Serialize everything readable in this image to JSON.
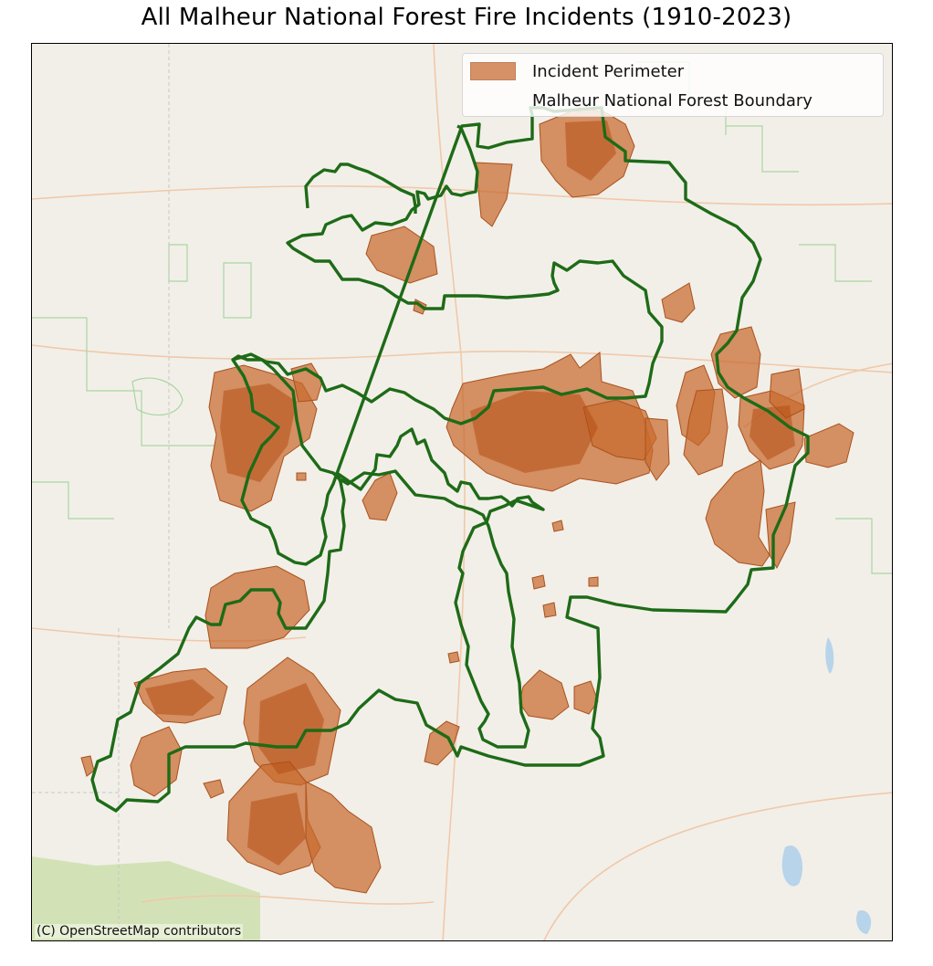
{
  "map": {
    "title": "All Malheur National Forest Fire Incidents (1910-2023)",
    "attribution": "(C) OpenStreetMap contributors",
    "legend": {
      "items": [
        {
          "label": "Incident Perimeter",
          "symbol": "filled-patch",
          "fill": "#c8692e",
          "edge": "#a9521c"
        },
        {
          "label": "Malheur National Forest Boundary",
          "symbol": "outline",
          "edge": "#1e6b17"
        }
      ]
    },
    "colors": {
      "basemap": "#f2efe9",
      "fire_fill": "#c8692e",
      "fire_dark": "#b54e14",
      "boundary": "#1e6b17",
      "minor_boundary": "#a9d6a0",
      "road": "#f0c9a8",
      "water": "#b8d4ea",
      "grassland": "#cbdfa9"
    },
    "basemap": "OpenStreetMap"
  }
}
